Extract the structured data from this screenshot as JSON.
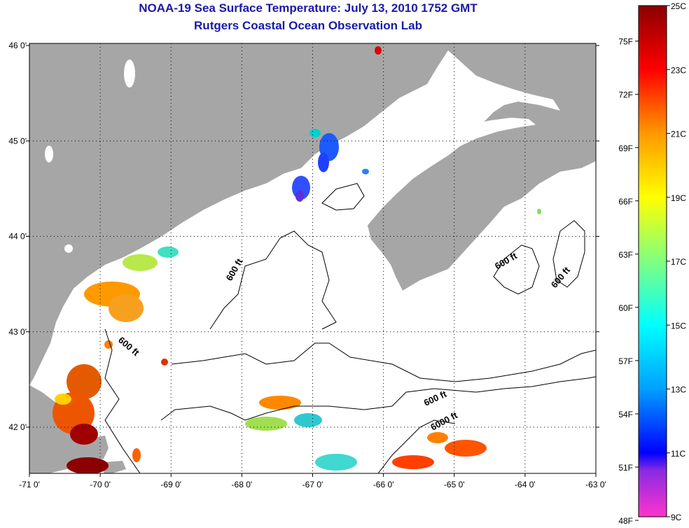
{
  "title_line1": "NOAA-19 Sea Surface Temperature:  July 13, 2010 1752 GMT",
  "title_line2": "Rutgers Coastal Ocean Observation Lab",
  "x_ticks": [
    "-71 0'",
    "-70 0'",
    "-69 0'",
    "-68 0'",
    "-67 0'",
    "-66 0'",
    "-65 0'",
    "-64 0'",
    "-63 0'"
  ],
  "y_ticks": [
    "46 0'",
    "45 0'",
    "44 0'",
    "43 0'",
    "42 0'"
  ],
  "contour_labels": [
    "600 ft",
    "600 ft",
    "600 ft",
    "600 ft",
    "600 ft",
    "6000 ft"
  ],
  "colorbar": {
    "fahrenheit_labels": [
      "75F",
      "72F",
      "69F",
      "66F",
      "63F",
      "60F",
      "57F",
      "54F",
      "51F",
      "48F"
    ],
    "celsius_labels": [
      "25C",
      "23C",
      "21C",
      "19C",
      "17C",
      "15C",
      "13C",
      "11C",
      "9C"
    ],
    "min_c": 9,
    "max_c": 25
  },
  "colors": {
    "land": "#a6a6a6",
    "ocean": "#ffffff",
    "title": "#1a1aa8"
  }
}
